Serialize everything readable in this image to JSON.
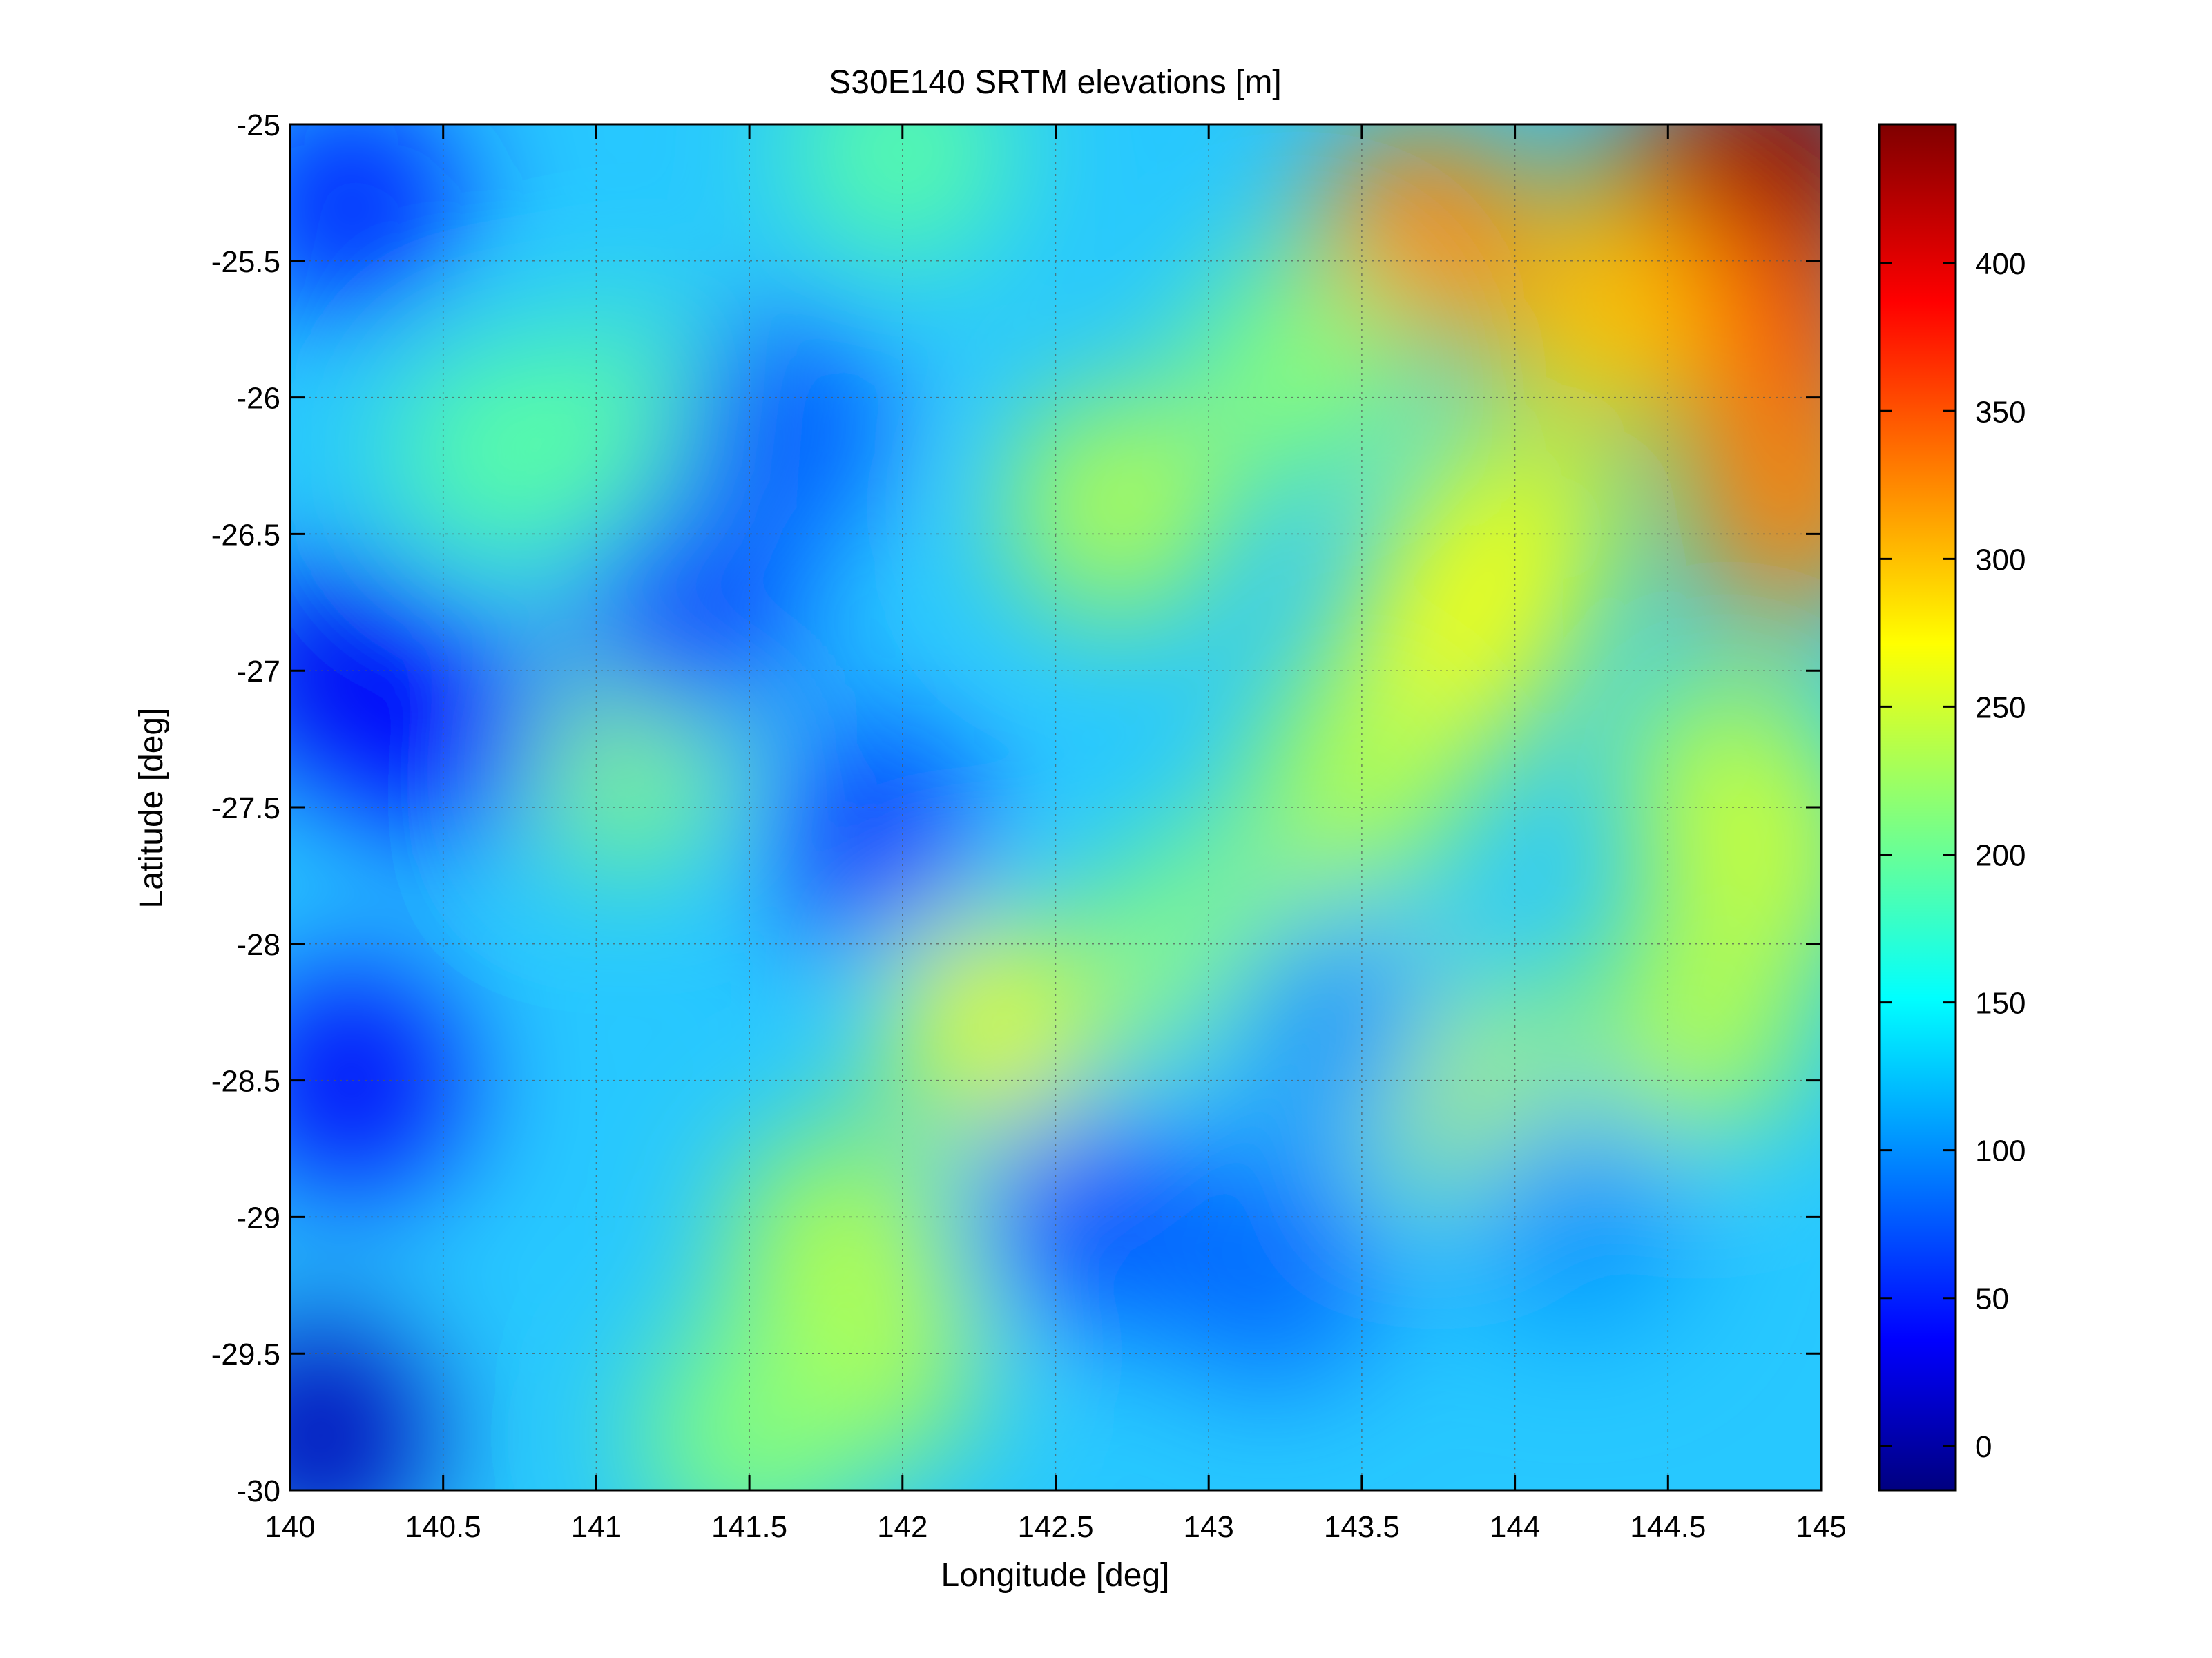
{
  "chart_data": {
    "type": "heatmap",
    "title": "S30E140 SRTM elevations [m]",
    "xlabel": "Longitude [deg]",
    "ylabel": "Latitude [deg]",
    "xlim": [
      140,
      145
    ],
    "ylim": [
      -30,
      -25
    ],
    "x_ticks": [
      "140",
      "140.5",
      "141",
      "141.5",
      "142",
      "142.5",
      "143",
      "143.5",
      "144",
      "144.5",
      "145"
    ],
    "y_ticks": [
      "-25",
      "-25.5",
      "-26",
      "-26.5",
      "-27",
      "-27.5",
      "-28",
      "-28.5",
      "-29",
      "-29.5",
      "-30"
    ],
    "grid": true,
    "colormap": "jet",
    "colorbar": {
      "range": [
        -15,
        447
      ],
      "ticks": [
        "0",
        "50",
        "100",
        "150",
        "200",
        "250",
        "300",
        "350",
        "400"
      ]
    },
    "elevation_features": [
      {
        "lon": 144.6,
        "lat": -25.3,
        "elev": 400
      },
      {
        "lon": 144.9,
        "lat": -25.1,
        "elev": 440
      },
      {
        "lon": 144.85,
        "lat": -25.8,
        "elev": 360
      },
      {
        "lon": 144.9,
        "lat": -26.4,
        "elev": 330
      },
      {
        "lon": 144.3,
        "lat": -25.7,
        "elev": 300
      },
      {
        "lon": 143.7,
        "lat": -25.4,
        "elev": 330
      },
      {
        "lon": 144.0,
        "lat": -26.5,
        "elev": 260
      },
      {
        "lon": 143.8,
        "lat": -26.9,
        "elev": 270
      },
      {
        "lon": 144.7,
        "lat": -27.4,
        "elev": 240
      },
      {
        "lon": 144.8,
        "lat": -27.7,
        "elev": 250
      },
      {
        "lon": 143.5,
        "lat": -27.4,
        "elev": 240
      },
      {
        "lon": 143.3,
        "lat": -25.9,
        "elev": 220
      },
      {
        "lon": 142.7,
        "lat": -26.4,
        "elev": 240
      },
      {
        "lon": 142.3,
        "lat": -28.3,
        "elev": 260
      },
      {
        "lon": 141.8,
        "lat": -29.1,
        "elev": 240
      },
      {
        "lon": 141.9,
        "lat": -29.5,
        "elev": 240
      },
      {
        "lon": 141.5,
        "lat": -29.8,
        "elev": 220
      },
      {
        "lon": 141.1,
        "lat": -27.3,
        "elev": 220
      },
      {
        "lon": 140.7,
        "lat": -26.2,
        "elev": 200
      },
      {
        "lon": 141.2,
        "lat": -26.1,
        "elev": 200
      },
      {
        "lon": 142.0,
        "lat": -25.1,
        "elev": 200
      },
      {
        "lon": 143.8,
        "lat": -28.5,
        "elev": 240
      },
      {
        "lon": 144.6,
        "lat": -28.3,
        "elev": 240
      },
      {
        "lon": 143.0,
        "lat": -28.0,
        "elev": 220
      },
      {
        "lon": 140.15,
        "lat": -27.0,
        "elev": 35
      },
      {
        "lon": 140.5,
        "lat": -27.2,
        "elev": 45
      },
      {
        "lon": 140.1,
        "lat": -29.8,
        "elev": 10
      },
      {
        "lon": 140.2,
        "lat": -28.5,
        "elev": 40
      },
      {
        "lon": 140.2,
        "lat": -25.3,
        "elev": 55
      },
      {
        "lon": 141.3,
        "lat": -26.8,
        "elev": 70
      },
      {
        "lon": 141.9,
        "lat": -27.6,
        "elev": 70
      },
      {
        "lon": 141.6,
        "lat": -26.1,
        "elev": 80
      },
      {
        "lon": 142.6,
        "lat": -29.0,
        "elev": 80
      },
      {
        "lon": 143.2,
        "lat": -29.2,
        "elev": 90
      },
      {
        "lon": 143.4,
        "lat": -28.3,
        "elev": 110
      },
      {
        "lon": 144.2,
        "lat": -29.0,
        "elev": 110
      }
    ]
  }
}
